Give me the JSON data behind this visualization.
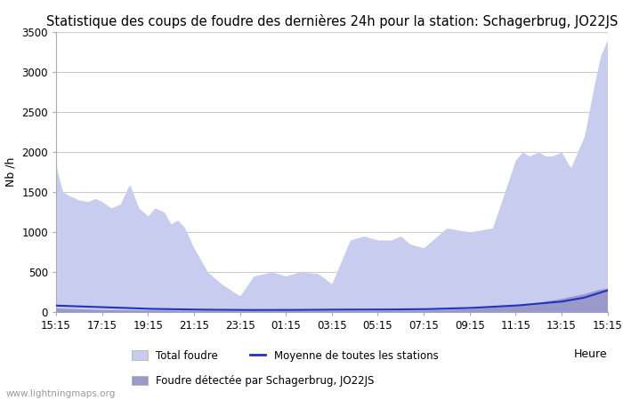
{
  "title": "Statistique des coups de foudre des dernières 24h pour la station: Schagerbrug, JO22JS",
  "ylabel": "Nb /h",
  "xlabel": "Heure",
  "watermark": "www.lightningmaps.org",
  "legend": [
    "Total foudre",
    "Moyenne de toutes les stations",
    "Foudre détectée par Schagerbrug, JO22JS"
  ],
  "tick_labels": [
    "15:15",
    "17:15",
    "19:15",
    "21:15",
    "23:15",
    "01:15",
    "03:15",
    "05:15",
    "07:15",
    "09:15",
    "11:15",
    "13:15",
    "15:15"
  ],
  "ylim": [
    0,
    3500
  ],
  "total_color": "#c8ccee",
  "detected_color": "#9999cc",
  "mean_color": "#2233bb",
  "background_color": "#ffffff",
  "grid_color": "#cccccc",
  "title_fontsize": 10.5,
  "axis_fontsize": 9,
  "tick_fontsize": 8.5,
  "total_keypoints_x": [
    0,
    0.05,
    0.15,
    0.3,
    0.5,
    0.7,
    0.85,
    1.0,
    1.2,
    1.4,
    1.6,
    1.8,
    2.0,
    2.15,
    2.35,
    2.5,
    2.65,
    2.8,
    3.0,
    3.3,
    3.6,
    4.0,
    4.3,
    4.7,
    5.0,
    5.3,
    5.7,
    6.0,
    6.4,
    6.7,
    7.0,
    7.3,
    7.5,
    7.7,
    8.0,
    8.5,
    9.0,
    9.5,
    10.0,
    10.15,
    10.3,
    10.5,
    10.65,
    10.8,
    11.0,
    11.2,
    11.5,
    11.7,
    11.85,
    12.0
  ],
  "total_keypoints_y": [
    1850,
    1700,
    1500,
    1450,
    1400,
    1380,
    1420,
    1380,
    1300,
    1350,
    1600,
    1300,
    1200,
    1300,
    1250,
    1100,
    1150,
    1050,
    800,
    500,
    350,
    200,
    450,
    500,
    450,
    500,
    480,
    350,
    900,
    950,
    900,
    900,
    950,
    850,
    800,
    1050,
    1000,
    1050,
    1900,
    2000,
    1950,
    2000,
    1950,
    1950,
    2000,
    1800,
    2200,
    2800,
    3200,
    3400
  ],
  "detected_keypoints_x": [
    0,
    0.5,
    1.0,
    2.0,
    3.0,
    4.0,
    5.0,
    6.0,
    7.0,
    8.0,
    9.0,
    10.0,
    10.5,
    11.0,
    11.5,
    11.8,
    12.0
  ],
  "detected_keypoints_y": [
    50,
    40,
    30,
    25,
    20,
    15,
    20,
    18,
    20,
    25,
    40,
    80,
    120,
    170,
    230,
    280,
    300
  ],
  "mean_keypoints_x": [
    0,
    1.0,
    2.0,
    3.0,
    4.0,
    5.0,
    6.0,
    7.0,
    8.0,
    9.0,
    10.0,
    11.0,
    11.5,
    12.0
  ],
  "mean_keypoints_y": [
    80,
    60,
    40,
    30,
    25,
    25,
    30,
    30,
    35,
    50,
    80,
    130,
    180,
    270
  ]
}
